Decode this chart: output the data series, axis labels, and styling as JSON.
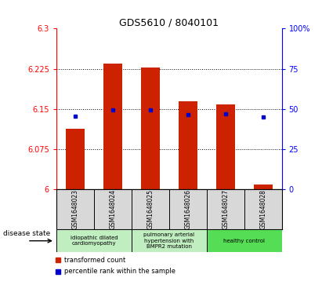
{
  "title": "GDS5610 / 8040101",
  "samples": [
    "GSM1648023",
    "GSM1648024",
    "GSM1648025",
    "GSM1648026",
    "GSM1648027",
    "GSM1648028"
  ],
  "red_values": [
    6.113,
    6.235,
    6.228,
    6.165,
    6.158,
    6.01
  ],
  "blue_values": [
    6.136,
    6.149,
    6.149,
    6.14,
    6.141,
    6.135
  ],
  "ylim_left": [
    6.0,
    6.3
  ],
  "ylim_right": [
    0,
    100
  ],
  "yticks_left": [
    6.0,
    6.075,
    6.15,
    6.225,
    6.3
  ],
  "yticks_right": [
    0,
    25,
    50,
    75,
    100
  ],
  "ytick_labels_left": [
    "6",
    "6.075",
    "6.15",
    "6.225",
    "6.3"
  ],
  "ytick_labels_right": [
    "0",
    "25",
    "50",
    "75",
    "100%"
  ],
  "disease_groups": [
    {
      "label": "idiopathic dilated\ncardiomyopathy",
      "color": "#c0eec0",
      "start": 0,
      "end": 1
    },
    {
      "label": "pulmonary arterial\nhypertension with\nBMPR2 mutation",
      "color": "#c0eec0",
      "start": 2,
      "end": 3
    },
    {
      "label": "healthy control",
      "color": "#55dd55",
      "start": 4,
      "end": 5
    }
  ],
  "bar_color": "#cc2200",
  "dot_color": "#0000cc",
  "legend_red_label": "transformed count",
  "legend_blue_label": "percentile rank within the sample",
  "disease_state_label": "disease state"
}
